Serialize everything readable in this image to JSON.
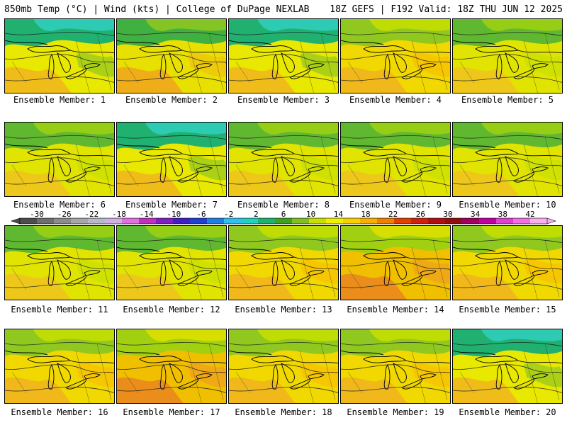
{
  "header": {
    "left": "850mb Temp (°C) | Wind (kts) | College of DuPage NEXLAB",
    "right": "18Z GEFS | F192 Valid: 18Z THU JUN 12 2025"
  },
  "colorbar": {
    "labels": [
      "-30",
      "-26",
      "-22",
      "-18",
      "-14",
      "-10",
      "-6",
      "-2",
      "2",
      "6",
      "10",
      "14",
      "18",
      "22",
      "26",
      "30",
      "34",
      "38",
      "42"
    ],
    "colors": [
      "#4d4d4d",
      "#6e6e6e",
      "#8c8c8c",
      "#a6a6a6",
      "#b8b8c8",
      "#d0b0e0",
      "#e070e0",
      "#c030c0",
      "#8020c0",
      "#4020c0",
      "#2040d0",
      "#2080e0",
      "#30c0f0",
      "#20d0c0",
      "#20b070",
      "#40a020",
      "#80c020",
      "#c8e000",
      "#f0f000",
      "#f8d000",
      "#f8b000",
      "#f08000",
      "#e04000",
      "#d02010",
      "#b01010",
      "#901010",
      "#a00060",
      "#c000a0",
      "#e040d0",
      "#f070e0",
      "#f8b0f0"
    ]
  },
  "panels": [
    {
      "label": "Ensemble Member: 1",
      "theme": "cold"
    },
    {
      "label": "Ensemble Member: 2",
      "theme": "mixwarm"
    },
    {
      "label": "Ensemble Member: 3",
      "theme": "cold"
    },
    {
      "label": "Ensemble Member: 4",
      "theme": "warm"
    },
    {
      "label": "Ensemble Member: 5",
      "theme": "mild"
    },
    {
      "label": "Ensemble Member: 6",
      "theme": "mild"
    },
    {
      "label": "Ensemble Member: 7",
      "theme": "cold"
    },
    {
      "label": "Ensemble Member: 8",
      "theme": "mild"
    },
    {
      "label": "Ensemble Member: 9",
      "theme": "mild"
    },
    {
      "label": "Ensemble Member: 10",
      "theme": "mild"
    },
    {
      "label": "Ensemble Member: 11",
      "theme": "mild"
    },
    {
      "label": "Ensemble Member: 12",
      "theme": "mild"
    },
    {
      "label": "Ensemble Member: 13",
      "theme": "warm"
    },
    {
      "label": "Ensemble Member: 14",
      "theme": "hot"
    },
    {
      "label": "Ensemble Member: 15",
      "theme": "warm"
    },
    {
      "label": "Ensemble Member: 16",
      "theme": "warm"
    },
    {
      "label": "Ensemble Member: 17",
      "theme": "hot"
    },
    {
      "label": "Ensemble Member: 18",
      "theme": "warm"
    },
    {
      "label": "Ensemble Member: 19",
      "theme": "warm"
    },
    {
      "label": "Ensemble Member: 20",
      "theme": "cold"
    }
  ]
}
